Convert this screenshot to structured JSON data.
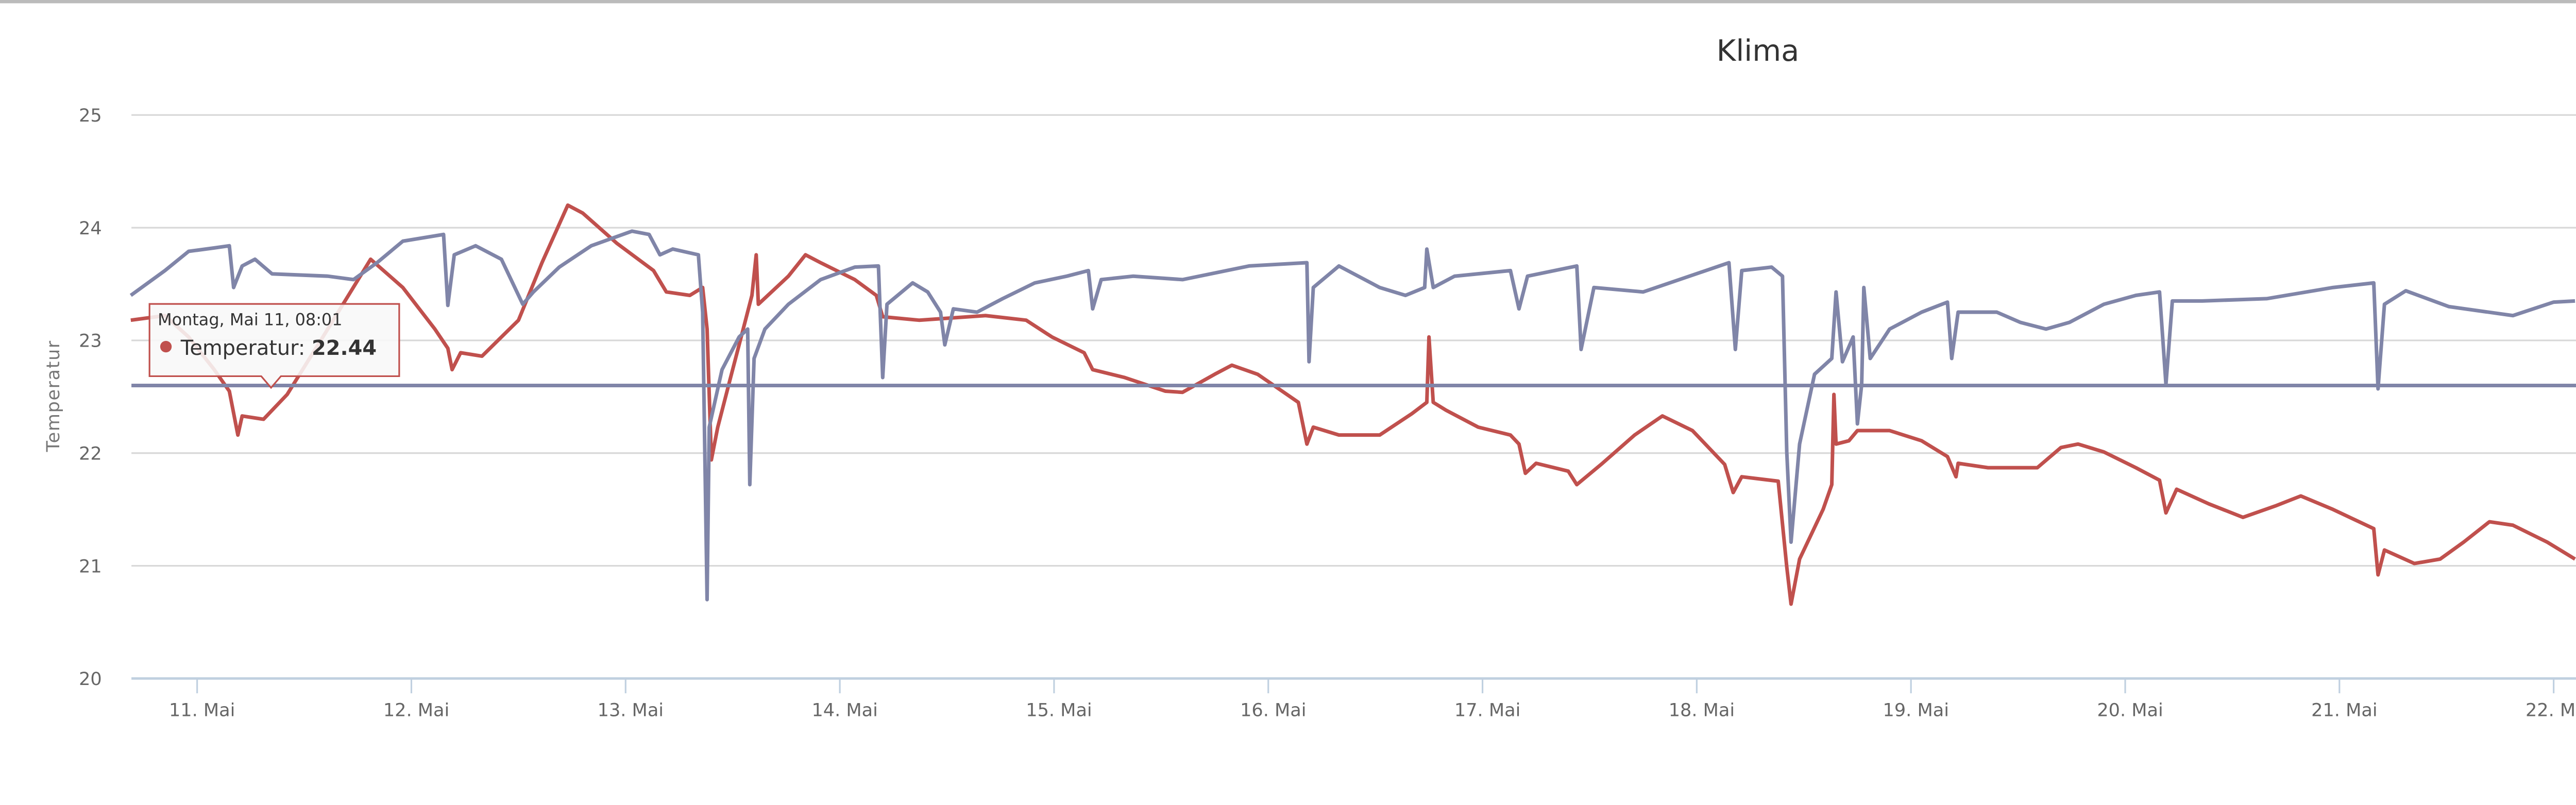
{
  "chart_data": {
    "type": "line",
    "title": "Klima",
    "xlabel": "",
    "ylabel": "Temperatur",
    "ylim": [
      20,
      25
    ],
    "xlim": [
      10.69,
      22.1
    ],
    "x_unit": "day of May",
    "yticks": [
      "20",
      "21",
      "22",
      "23",
      "24",
      "25"
    ],
    "ytick_values": [
      20,
      21,
      22,
      23,
      24,
      25
    ],
    "xticks": [
      "11. Mai",
      "12. Mai",
      "13. Mai",
      "14. Mai",
      "15. Mai",
      "16. Mai",
      "17. Mai",
      "18. Mai",
      "19. Mai",
      "20. Mai",
      "21. Mai",
      "22. Mai"
    ],
    "xtick_values": [
      11,
      12,
      13,
      14,
      15,
      16,
      17,
      18,
      19,
      20,
      21,
      22
    ],
    "grid": true,
    "legend": "none",
    "reference_line": {
      "value": 22.6,
      "color": "#8085a8"
    },
    "series": [
      {
        "name": "Temperatur",
        "color": "#c0504d",
        "points": [
          [
            10.69,
            23.18
          ],
          [
            10.85,
            23.22
          ],
          [
            10.96,
            23.03
          ],
          [
            11.08,
            22.74
          ],
          [
            11.15,
            22.55
          ],
          [
            11.19,
            22.16
          ],
          [
            11.21,
            22.33
          ],
          [
            11.31,
            22.3
          ],
          [
            11.42,
            22.52
          ],
          [
            11.61,
            23.1
          ],
          [
            11.81,
            23.72
          ],
          [
            11.96,
            23.47
          ],
          [
            12.11,
            23.1
          ],
          [
            12.17,
            22.93
          ],
          [
            12.19,
            22.74
          ],
          [
            12.23,
            22.89
          ],
          [
            12.33,
            22.86
          ],
          [
            12.5,
            23.18
          ],
          [
            12.61,
            23.69
          ],
          [
            12.73,
            24.2
          ],
          [
            12.8,
            24.13
          ],
          [
            12.96,
            23.86
          ],
          [
            13.13,
            23.62
          ],
          [
            13.19,
            23.43
          ],
          [
            13.3,
            23.4
          ],
          [
            13.36,
            23.47
          ],
          [
            13.38,
            23.1
          ],
          [
            13.4,
            21.94
          ],
          [
            13.43,
            22.23
          ],
          [
            13.49,
            22.67
          ],
          [
            13.53,
            22.96
          ],
          [
            13.59,
            23.4
          ],
          [
            13.61,
            23.76
          ],
          [
            13.62,
            23.32
          ],
          [
            13.76,
            23.57
          ],
          [
            13.84,
            23.76
          ],
          [
            13.91,
            23.69
          ],
          [
            14.07,
            23.54
          ],
          [
            14.17,
            23.4
          ],
          [
            14.2,
            23.21
          ],
          [
            14.37,
            23.18
          ],
          [
            14.68,
            23.22
          ],
          [
            14.87,
            23.18
          ],
          [
            14.99,
            23.03
          ],
          [
            15.14,
            22.89
          ],
          [
            15.18,
            22.74
          ],
          [
            15.33,
            22.67
          ],
          [
            15.52,
            22.55
          ],
          [
            15.6,
            22.54
          ],
          [
            15.75,
            22.7
          ],
          [
            15.83,
            22.78
          ],
          [
            15.95,
            22.7
          ],
          [
            16.14,
            22.45
          ],
          [
            16.18,
            22.08
          ],
          [
            16.21,
            22.23
          ],
          [
            16.33,
            22.16
          ],
          [
            16.52,
            22.16
          ],
          [
            16.67,
            22.35
          ],
          [
            16.74,
            22.45
          ],
          [
            16.75,
            23.03
          ],
          [
            16.77,
            22.45
          ],
          [
            16.83,
            22.38
          ],
          [
            16.98,
            22.23
          ],
          [
            17.13,
            22.16
          ],
          [
            17.17,
            22.08
          ],
          [
            17.2,
            21.82
          ],
          [
            17.25,
            21.91
          ],
          [
            17.4,
            21.84
          ],
          [
            17.44,
            21.72
          ],
          [
            17.56,
            21.91
          ],
          [
            17.71,
            22.16
          ],
          [
            17.84,
            22.33
          ],
          [
            17.98,
            22.2
          ],
          [
            18.13,
            21.9
          ],
          [
            18.17,
            21.65
          ],
          [
            18.21,
            21.79
          ],
          [
            18.38,
            21.75
          ],
          [
            18.42,
            20.99
          ],
          [
            18.44,
            20.66
          ],
          [
            18.48,
            21.06
          ],
          [
            18.59,
            21.5
          ],
          [
            18.63,
            21.72
          ],
          [
            18.64,
            22.52
          ],
          [
            18.65,
            22.08
          ],
          [
            18.71,
            22.11
          ],
          [
            18.75,
            22.2
          ],
          [
            18.9,
            22.2
          ],
          [
            19.05,
            22.11
          ],
          [
            19.17,
            21.97
          ],
          [
            19.21,
            21.79
          ],
          [
            19.22,
            21.91
          ],
          [
            19.36,
            21.87
          ],
          [
            19.59,
            21.87
          ],
          [
            19.7,
            22.05
          ],
          [
            19.78,
            22.08
          ],
          [
            19.9,
            22.01
          ],
          [
            20.05,
            21.87
          ],
          [
            20.16,
            21.76
          ],
          [
            20.19,
            21.47
          ],
          [
            20.24,
            21.68
          ],
          [
            20.39,
            21.55
          ],
          [
            20.55,
            21.43
          ],
          [
            20.7,
            21.53
          ],
          [
            20.82,
            21.62
          ],
          [
            20.97,
            21.5
          ],
          [
            21.16,
            21.33
          ],
          [
            21.18,
            20.92
          ],
          [
            21.21,
            21.14
          ],
          [
            21.35,
            21.02
          ],
          [
            21.47,
            21.06
          ],
          [
            21.58,
            21.21
          ],
          [
            21.7,
            21.39
          ],
          [
            21.81,
            21.36
          ],
          [
            21.97,
            21.21
          ],
          [
            22.1,
            21.06
          ]
        ]
      },
      {
        "name": "",
        "color": "#8085a8",
        "points": [
          [
            10.69,
            23.4
          ],
          [
            10.85,
            23.62
          ],
          [
            10.96,
            23.79
          ],
          [
            11.08,
            23.82
          ],
          [
            11.15,
            23.84
          ],
          [
            11.17,
            23.47
          ],
          [
            11.21,
            23.66
          ],
          [
            11.27,
            23.72
          ],
          [
            11.35,
            23.59
          ],
          [
            11.61,
            23.57
          ],
          [
            11.73,
            23.54
          ],
          [
            11.84,
            23.69
          ],
          [
            11.96,
            23.88
          ],
          [
            12.15,
            23.94
          ],
          [
            12.17,
            23.31
          ],
          [
            12.2,
            23.76
          ],
          [
            12.3,
            23.84
          ],
          [
            12.42,
            23.72
          ],
          [
            12.52,
            23.32
          ],
          [
            12.57,
            23.43
          ],
          [
            12.69,
            23.65
          ],
          [
            12.84,
            23.84
          ],
          [
            13.03,
            23.97
          ],
          [
            13.11,
            23.94
          ],
          [
            13.16,
            23.76
          ],
          [
            13.22,
            23.81
          ],
          [
            13.34,
            23.76
          ],
          [
            13.36,
            23.25
          ],
          [
            13.38,
            20.7
          ],
          [
            13.39,
            22.23
          ],
          [
            13.45,
            22.74
          ],
          [
            13.53,
            23.03
          ],
          [
            13.57,
            23.1
          ],
          [
            13.58,
            21.72
          ],
          [
            13.6,
            22.84
          ],
          [
            13.65,
            23.1
          ],
          [
            13.76,
            23.32
          ],
          [
            13.91,
            23.54
          ],
          [
            14.07,
            23.65
          ],
          [
            14.18,
            23.66
          ],
          [
            14.2,
            22.67
          ],
          [
            14.22,
            23.32
          ],
          [
            14.34,
            23.51
          ],
          [
            14.41,
            23.43
          ],
          [
            14.47,
            23.25
          ],
          [
            14.49,
            22.96
          ],
          [
            14.53,
            23.28
          ],
          [
            14.64,
            23.25
          ],
          [
            14.76,
            23.37
          ],
          [
            14.91,
            23.51
          ],
          [
            15.06,
            23.57
          ],
          [
            15.16,
            23.62
          ],
          [
            15.18,
            23.28
          ],
          [
            15.22,
            23.54
          ],
          [
            15.37,
            23.57
          ],
          [
            15.6,
            23.54
          ],
          [
            15.91,
            23.66
          ],
          [
            16.18,
            23.69
          ],
          [
            16.19,
            22.81
          ],
          [
            16.21,
            23.47
          ],
          [
            16.33,
            23.66
          ],
          [
            16.52,
            23.47
          ],
          [
            16.64,
            23.4
          ],
          [
            16.73,
            23.47
          ],
          [
            16.74,
            23.81
          ],
          [
            16.77,
            23.47
          ],
          [
            16.87,
            23.57
          ],
          [
            17.13,
            23.62
          ],
          [
            17.17,
            23.28
          ],
          [
            17.21,
            23.57
          ],
          [
            17.44,
            23.66
          ],
          [
            17.46,
            22.92
          ],
          [
            17.52,
            23.47
          ],
          [
            17.75,
            23.43
          ],
          [
            18.15,
            23.69
          ],
          [
            18.18,
            22.92
          ],
          [
            18.21,
            23.62
          ],
          [
            18.35,
            23.65
          ],
          [
            18.4,
            23.57
          ],
          [
            18.42,
            22.01
          ],
          [
            18.44,
            21.21
          ],
          [
            18.48,
            22.08
          ],
          [
            18.55,
            22.7
          ],
          [
            18.63,
            22.84
          ],
          [
            18.65,
            23.43
          ],
          [
            18.68,
            22.81
          ],
          [
            18.73,
            23.03
          ],
          [
            18.75,
            22.26
          ],
          [
            18.77,
            22.61
          ],
          [
            18.78,
            23.47
          ],
          [
            18.81,
            22.84
          ],
          [
            18.9,
            23.1
          ],
          [
            19.05,
            23.25
          ],
          [
            19.17,
            23.34
          ],
          [
            19.19,
            22.84
          ],
          [
            19.22,
            23.25
          ],
          [
            19.4,
            23.25
          ],
          [
            19.51,
            23.16
          ],
          [
            19.63,
            23.1
          ],
          [
            19.74,
            23.16
          ],
          [
            19.9,
            23.32
          ],
          [
            20.05,
            23.4
          ],
          [
            20.16,
            23.43
          ],
          [
            20.19,
            22.61
          ],
          [
            20.22,
            23.35
          ],
          [
            20.36,
            23.35
          ],
          [
            20.66,
            23.37
          ],
          [
            20.97,
            23.47
          ],
          [
            21.16,
            23.51
          ],
          [
            21.18,
            22.57
          ],
          [
            21.21,
            23.32
          ],
          [
            21.31,
            23.44
          ],
          [
            21.51,
            23.3
          ],
          [
            21.81,
            23.22
          ],
          [
            22.0,
            23.34
          ],
          [
            22.1,
            23.35
          ]
        ]
      }
    ],
    "tooltip": {
      "date": "Montag, Mai 11, 08:01",
      "series_label": "Temperatur:",
      "value": "22.44",
      "x": 11.33,
      "y": 22.44
    }
  }
}
